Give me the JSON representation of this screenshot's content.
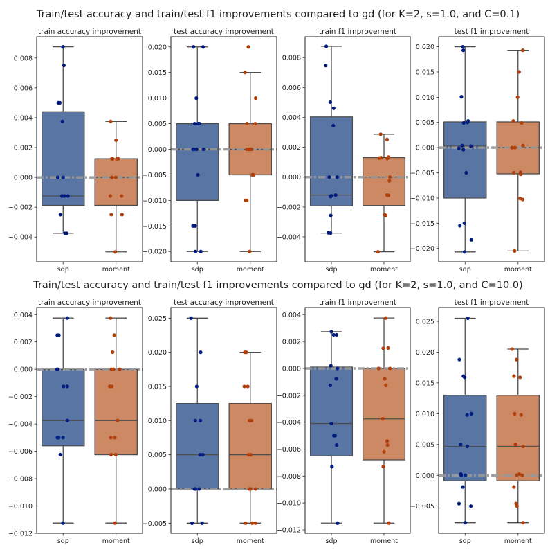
{
  "suptitles": [
    "Train/test accuracy and train/test f1 improvements compared to gd (for K=2, s=1.0, and C=0.1)",
    "Train/test accuracy and train/test f1 improvements compared to gd (for K=2, s=1.0, and C=10.0)"
  ],
  "colors": {
    "sdp_box": "#5975a4",
    "moment_box": "#cc8963",
    "sdp_point": "#001c7f",
    "moment_point": "#b1400d",
    "zero_line": "#999999",
    "edge": "#4d4d4d"
  },
  "chart_data": [
    {
      "type": "box",
      "title": "train accuracy improvement",
      "categories": [
        "sdp",
        "moment"
      ],
      "ylim": [
        -0.00566,
        0.00943
      ],
      "yticks": [
        -0.004,
        -0.002,
        0,
        0.002,
        0.004,
        0.006,
        0.008
      ],
      "ytick_labels": [
        "−0.004",
        "−0.002",
        "0.000",
        "0.002",
        "0.004",
        "0.006",
        "0.008"
      ],
      "reference_line": 0,
      "series": [
        {
          "name": "sdp",
          "whislo": -0.00375,
          "q1": -0.001875,
          "median": -0.00125,
          "q3": 0.0044,
          "whishi": 0.00875,
          "points": [
            0.00875,
            0.0075,
            0.005,
            0.005,
            0.00375,
            0,
            0,
            -0.00125,
            -0.00125,
            -0.00125,
            -0.0025,
            -0.00375,
            -0.00375
          ]
        },
        {
          "name": "moment",
          "whislo": -0.005,
          "q1": -0.001875,
          "median": 0,
          "q3": 0.00125,
          "whishi": 0.00375,
          "points": [
            0.00375,
            0.0025,
            0.00125,
            0.00125,
            0.00125,
            0.00125,
            0,
            0,
            -0.00125,
            -0.00125,
            -0.0025,
            -0.0025,
            -0.005
          ]
        }
      ]
    },
    {
      "type": "box",
      "title": "test accuracy improvement",
      "categories": [
        "sdp",
        "moment"
      ],
      "ylim": [
        -0.022,
        0.022
      ],
      "yticks": [
        -0.02,
        -0.015,
        -0.01,
        -0.005,
        0,
        0.005,
        0.01,
        0.015,
        0.02
      ],
      "ytick_labels": [
        "−0.020",
        "−0.015",
        "−0.010",
        "−0.005",
        "0.000",
        "0.005",
        "0.010",
        "0.015",
        "0.020"
      ],
      "reference_line": 0,
      "series": [
        {
          "name": "sdp",
          "whislo": -0.02,
          "q1": -0.01,
          "median": 0,
          "q3": 0.005,
          "whishi": 0.02,
          "points": [
            0.02,
            0.02,
            0.01,
            0.005,
            0.005,
            0.005,
            0,
            0,
            0,
            0,
            -0.005,
            -0.015,
            -0.015,
            -0.02,
            -0.02
          ]
        },
        {
          "name": "moment",
          "whislo": -0.02,
          "q1": -0.005,
          "median": 0,
          "q3": 0.005,
          "whishi": 0.015,
          "points": [
            0.02,
            0.015,
            0.01,
            0.005,
            0.005,
            0,
            0,
            0,
            0,
            -0.005,
            -0.005,
            -0.01,
            -0.01,
            -0.02
          ]
        }
      ]
    },
    {
      "type": "box",
      "title": "train f1 improvement",
      "categories": [
        "sdp",
        "moment"
      ],
      "ylim": [
        -0.00567,
        0.0094
      ],
      "yticks": [
        -0.004,
        -0.002,
        0,
        0.002,
        0.004,
        0.006,
        0.008
      ],
      "ytick_labels": [
        "−0.004",
        "−0.002",
        "0.000",
        "0.002",
        "0.004",
        "0.006",
        "0.008"
      ],
      "reference_line": 0,
      "series": [
        {
          "name": "sdp",
          "whislo": -0.00375,
          "q1": -0.00193,
          "median": -0.0012,
          "q3": 0.00403,
          "whishi": 0.00875,
          "points": [
            0.00875,
            0.00747,
            0.00502,
            0.00461,
            0.00344,
            0,
            0,
            -0.0013,
            -0.00125,
            -0.00128,
            -0.0012,
            -0.00257,
            -0.00375,
            -0.00373
          ]
        },
        {
          "name": "moment",
          "whislo": -0.005,
          "q1": -0.0019,
          "median": 0,
          "q3": 0.00131,
          "whishi": 0.00287,
          "points": [
            0.00287,
            0.00252,
            0.00128,
            0.0013,
            0.00125,
            0.00134,
            0,
            -0.00025,
            -0.00122,
            -0.0012,
            -0.00257,
            -0.00252,
            -0.005
          ]
        }
      ]
    },
    {
      "type": "box",
      "title": "test f1 improvement",
      "categories": [
        "sdp",
        "moment"
      ],
      "ylim": [
        -0.02265,
        0.022
      ],
      "yticks": [
        -0.02,
        -0.015,
        -0.01,
        -0.005,
        0,
        0.005,
        0.01,
        0.015,
        0.02
      ],
      "ytick_labels": [
        "−0.020",
        "−0.015",
        "−0.010",
        "−0.005",
        "0.000",
        "0.005",
        "0.010",
        "0.015",
        "0.020"
      ],
      "reference_line": 0,
      "series": [
        {
          "name": "sdp",
          "whislo": -0.0207,
          "q1": -0.01,
          "median": 0.0003,
          "q3": 0.0051,
          "whishi": 0.02,
          "points": [
            0.02,
            0.0193,
            0.0101,
            0.0049,
            0.005,
            0.0053,
            0.0004,
            0.0003,
            -0.0001,
            -0.0004,
            -0.005,
            -0.015,
            -0.0155,
            -0.0183,
            -0.0207
          ]
        },
        {
          "name": "moment",
          "whislo": -0.0205,
          "q1": -0.0052,
          "median": 0,
          "q3": 0.0051,
          "whishi": 0.0193,
          "points": [
            0.0193,
            0.015,
            0.01,
            0.0053,
            0.0049,
            0.0004,
            0,
            0,
            -0.005,
            -0.0053,
            -0.0049,
            -0.0101,
            -0.0103,
            -0.0205
          ]
        }
      ]
    },
    {
      "type": "box",
      "title": "train accuracy improvement",
      "categories": [
        "sdp",
        "moment"
      ],
      "ylim": [
        -0.012,
        0.00452
      ],
      "yticks": [
        -0.012,
        -0.01,
        -0.008,
        -0.006,
        -0.004,
        -0.002,
        0,
        0.002,
        0.004
      ],
      "ytick_labels": [
        "−0.012",
        "−0.010",
        "−0.008",
        "−0.006",
        "−0.004",
        "−0.002",
        "0.000",
        "0.002",
        "0.004"
      ],
      "reference_line": 0,
      "series": [
        {
          "name": "sdp",
          "whislo": -0.01125,
          "q1": -0.0056,
          "median": -0.00375,
          "q3": 0,
          "whishi": 0.00375,
          "points": [
            0.00375,
            0.0025,
            0.0025,
            0,
            0,
            -0.00125,
            -0.00125,
            -0.00375,
            -0.005,
            -0.005,
            -0.005,
            -0.00625,
            -0.01125
          ]
        },
        {
          "name": "moment",
          "whislo": -0.01125,
          "q1": -0.00625,
          "median": -0.00375,
          "q3": 0,
          "whishi": 0.00375,
          "points": [
            0.00375,
            0.0025,
            0.00125,
            0,
            0,
            0,
            -0.00125,
            -0.00125,
            -0.00375,
            -0.005,
            -0.005,
            -0.00625,
            -0.00625,
            -0.01125
          ]
        }
      ]
    },
    {
      "type": "box",
      "title": "test accuracy improvement",
      "categories": [
        "sdp",
        "moment"
      ],
      "ylim": [
        -0.00649,
        0.02655
      ],
      "yticks": [
        -0.005,
        0,
        0.005,
        0.01,
        0.015,
        0.02,
        0.025
      ],
      "ytick_labels": [
        "−0.005",
        "0.000",
        "0.005",
        "0.010",
        "0.015",
        "0.020",
        "0.025"
      ],
      "reference_line": 0,
      "series": [
        {
          "name": "sdp",
          "whislo": -0.005,
          "q1": 0,
          "median": 0.005,
          "q3": 0.0125,
          "whishi": 0.025,
          "points": [
            0.025,
            0.02,
            0.015,
            0.01,
            0.01,
            0.005,
            0.005,
            0,
            0,
            0,
            -0.005,
            -0.005,
            -0.005
          ]
        },
        {
          "name": "moment",
          "whislo": -0.005,
          "q1": 0,
          "median": 0.005,
          "q3": 0.0125,
          "whishi": 0.02,
          "points": [
            0.02,
            0.02,
            0.015,
            0.015,
            0.01,
            0.01,
            0.005,
            0.005,
            0,
            0,
            0,
            -0.005,
            -0.005,
            -0.005
          ]
        }
      ]
    },
    {
      "type": "box",
      "title": "train f1 improvement",
      "categories": [
        "sdp",
        "moment"
      ],
      "ylim": [
        -0.01226,
        0.00453
      ],
      "yticks": [
        -0.012,
        -0.01,
        -0.008,
        -0.006,
        -0.004,
        -0.002,
        0,
        0.002,
        0.004
      ],
      "ytick_labels": [
        "−0.012",
        "−0.010",
        "−0.008",
        "−0.006",
        "−0.004",
        "−0.002",
        "0.000",
        "0.002",
        "0.004"
      ],
      "reference_line": 0,
      "series": [
        {
          "name": "sdp",
          "whislo": -0.0115,
          "q1": -0.0065,
          "median": -0.0041,
          "q3": 0.0001,
          "whishi": 0.00273,
          "points": [
            0.00273,
            0.0025,
            0.0025,
            0.0002,
            0,
            -0.00077,
            -0.00126,
            -0.0041,
            -0.005,
            -0.005,
            -0.0057,
            -0.0073,
            -0.0115
          ]
        },
        {
          "name": "moment",
          "whislo": -0.0115,
          "q1": -0.0068,
          "median": -0.00375,
          "q3": 0,
          "whishi": 0.00375,
          "points": [
            0.00375,
            0.00152,
            0.0015,
            0,
            0,
            -0.00077,
            -0.00126,
            -0.00375,
            -0.0054,
            -0.0057,
            -0.0062,
            -0.0073,
            -0.0115
          ]
        }
      ]
    },
    {
      "type": "box",
      "title": "test f1 improvement",
      "categories": [
        "sdp",
        "moment"
      ],
      "ylim": [
        -0.00942,
        0.02725
      ],
      "yticks": [
        -0.005,
        0,
        0.005,
        0.01,
        0.015,
        0.02,
        0.025
      ],
      "ytick_labels": [
        "−0.005",
        "0.000",
        "0.005",
        "0.010",
        "0.015",
        "0.020",
        "0.025"
      ],
      "reference_line": 0,
      "series": [
        {
          "name": "sdp",
          "whislo": -0.0077,
          "q1": -0.0009,
          "median": 0.0047,
          "q3": 0.013,
          "whishi": 0.0255,
          "points": [
            0.0255,
            0.0188,
            0.0161,
            0.0159,
            0.01,
            0.0098,
            0.005,
            0.0047,
            0.0002,
            0,
            0,
            -0.0019,
            -0.0046,
            -0.005,
            -0.0077
          ]
        },
        {
          "name": "moment",
          "whislo": -0.0077,
          "q1": -0.0009,
          "median": 0.0047,
          "q3": 0.013,
          "whishi": 0.0205,
          "points": [
            0.0205,
            0.0188,
            0.0161,
            0.0159,
            0.01,
            0.0098,
            0.005,
            0.0047,
            0.0002,
            0,
            0,
            -0.0019,
            -0.0046,
            -0.005,
            -0.0077
          ]
        }
      ]
    }
  ]
}
